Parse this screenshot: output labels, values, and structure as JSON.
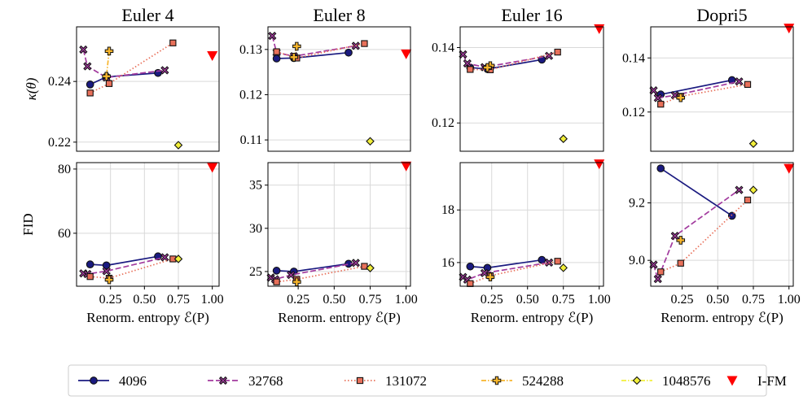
{
  "legend": {
    "entries": [
      {
        "name": "4096",
        "color": "#1a1a80",
        "marker": "circle",
        "dash": "solid"
      },
      {
        "name": "32768",
        "color": "#a23a9e",
        "marker": "x",
        "dash": "dashed"
      },
      {
        "name": "131072",
        "color": "#e8705a",
        "marker": "square",
        "dash": "dotted"
      },
      {
        "name": "524288",
        "color": "#f7b52c",
        "marker": "plus",
        "dash": "dashdot"
      },
      {
        "name": "1048576",
        "color": "#f2ef3a",
        "marker": "diamond",
        "dash": "dashdot"
      },
      {
        "name": "I-FM",
        "color": "#ff0000",
        "marker": "triangle",
        "dash": "none"
      }
    ]
  },
  "chart_data": [
    {
      "type": "scatter",
      "title": "Euler 4",
      "ylabel": "κ(θ)",
      "xlabel": "",
      "xlim": [
        0,
        1.05
      ],
      "ylim": [
        0.217,
        0.258
      ],
      "yticks": [
        "0.22",
        "0.24"
      ],
      "ytick_values": [
        0.22,
        0.24
      ],
      "xticks": [],
      "xtick_values": [],
      "series": [
        {
          "name": "4096",
          "points": [
            [
              0.1,
              0.239
            ],
            [
              0.22,
              0.2415
            ],
            [
              0.6,
              0.2428
            ]
          ]
        },
        {
          "name": "32768",
          "points": [
            [
              0.05,
              0.2505
            ],
            [
              0.08,
              0.245
            ],
            [
              0.22,
              0.2413
            ],
            [
              0.65,
              0.2437
            ]
          ]
        },
        {
          "name": "131072",
          "points": [
            [
              0.1,
              0.2362
            ],
            [
              0.24,
              0.2393
            ],
            [
              0.71,
              0.2527
            ]
          ]
        },
        {
          "name": "524288",
          "points": [
            [
              0.24,
              0.25
            ],
            [
              0.22,
              0.2417
            ]
          ]
        },
        {
          "name": "1048576",
          "points": [
            [
              0.75,
              0.219
            ]
          ]
        },
        {
          "name": "I-FM",
          "points": [
            [
              1.0,
              0.2485
            ]
          ]
        }
      ]
    },
    {
      "type": "scatter",
      "title": "Euler 8",
      "ylabel": "",
      "xlabel": "",
      "xlim": [
        0.04,
        1.03
      ],
      "ylim": [
        0.1075,
        0.135
      ],
      "yticks": [
        "0.11",
        "0.12",
        "0.13"
      ],
      "ytick_values": [
        0.11,
        0.12,
        0.13
      ],
      "xticks": [],
      "xtick_values": [],
      "series": [
        {
          "name": "4096",
          "points": [
            [
              0.1,
              0.128
            ],
            [
              0.22,
              0.1281
            ],
            [
              0.6,
              0.1293
            ]
          ]
        },
        {
          "name": "32768",
          "points": [
            [
              0.07,
              0.133
            ],
            [
              0.1,
              0.1293
            ],
            [
              0.22,
              0.1285
            ],
            [
              0.65,
              0.1308
            ]
          ]
        },
        {
          "name": "131072",
          "points": [
            [
              0.1,
              0.1295
            ],
            [
              0.24,
              0.1281
            ],
            [
              0.71,
              0.1313
            ]
          ]
        },
        {
          "name": "524288",
          "points": [
            [
              0.24,
              0.1307
            ],
            [
              0.22,
              0.1283
            ]
          ]
        },
        {
          "name": "1048576",
          "points": [
            [
              0.75,
              0.1097
            ]
          ]
        },
        {
          "name": "I-FM",
          "points": [
            [
              1.0,
              0.129
            ]
          ]
        }
      ]
    },
    {
      "type": "scatter",
      "title": "Euler 16",
      "ylabel": "",
      "xlabel": "",
      "xlim": [
        0.03,
        1.03
      ],
      "ylim": [
        0.1125,
        0.1455
      ],
      "yticks": [
        "0.12",
        "0.14"
      ],
      "ytick_values": [
        0.12,
        0.14
      ],
      "xticks": [],
      "xtick_values": [],
      "series": [
        {
          "name": "4096",
          "points": [
            [
              0.1,
              0.1347
            ],
            [
              0.22,
              0.1343
            ],
            [
              0.6,
              0.1368
            ]
          ]
        },
        {
          "name": "32768",
          "points": [
            [
              0.05,
              0.1382
            ],
            [
              0.08,
              0.1358
            ],
            [
              0.2,
              0.1348
            ],
            [
              0.65,
              0.1378
            ]
          ]
        },
        {
          "name": "131072",
          "points": [
            [
              0.1,
              0.1342
            ],
            [
              0.24,
              0.1341
            ],
            [
              0.71,
              0.1388
            ]
          ]
        },
        {
          "name": "524288",
          "points": [
            [
              0.24,
              0.1352
            ],
            [
              0.22,
              0.1347
            ]
          ]
        },
        {
          "name": "1048576",
          "points": [
            [
              0.75,
              0.1158
            ]
          ]
        },
        {
          "name": "I-FM",
          "points": [
            [
              1.0,
              0.145
            ]
          ]
        }
      ]
    },
    {
      "type": "scatter",
      "title": "Dopri5",
      "ylabel": "",
      "xlabel": "",
      "xlim": [
        0.03,
        1.03
      ],
      "ylim": [
        0.1055,
        0.1515
      ],
      "yticks": [
        "0.12",
        "0.14"
      ],
      "ytick_values": [
        0.12,
        0.14
      ],
      "xticks": [],
      "xtick_values": [],
      "series": [
        {
          "name": "4096",
          "points": [
            [
              0.1,
              0.1265
            ],
            [
              0.6,
              0.1318
            ]
          ]
        },
        {
          "name": "32768",
          "points": [
            [
              0.05,
              0.128
            ],
            [
              0.08,
              0.1252
            ],
            [
              0.2,
              0.1262
            ],
            [
              0.65,
              0.1313
            ]
          ]
        },
        {
          "name": "131072",
          "points": [
            [
              0.1,
              0.1229
            ],
            [
              0.24,
              0.1258
            ],
            [
              0.71,
              0.1302
            ]
          ]
        },
        {
          "name": "524288",
          "points": [
            [
              0.24,
              0.1253
            ]
          ]
        },
        {
          "name": "1048576",
          "points": [
            [
              0.75,
              0.1083
            ]
          ]
        },
        {
          "name": "I-FM",
          "points": [
            [
              1.0,
              0.151
            ]
          ]
        }
      ]
    },
    {
      "type": "scatter",
      "title": "",
      "ylabel": "FID",
      "xlabel": "Renorm. entropy ℰ(P)",
      "xlim": [
        0,
        1.05
      ],
      "ylim": [
        43.5,
        82
      ],
      "yticks": [
        "60",
        "80"
      ],
      "ytick_values": [
        60,
        80
      ],
      "xticks": [
        "0.25",
        "0.50",
        "0.75",
        "1.00"
      ],
      "xtick_values": [
        0.25,
        0.5,
        0.75,
        1.0
      ],
      "series": [
        {
          "name": "4096",
          "points": [
            [
              0.1,
              50.3
            ],
            [
              0.22,
              50
            ],
            [
              0.6,
              52.8
            ]
          ]
        },
        {
          "name": "32768",
          "points": [
            [
              0.05,
              47.5
            ],
            [
              0.08,
              47.3
            ],
            [
              0.22,
              48.2
            ],
            [
              0.65,
              52.5
            ]
          ]
        },
        {
          "name": "131072",
          "points": [
            [
              0.1,
              46.5
            ],
            [
              0.24,
              46
            ],
            [
              0.71,
              52
            ]
          ]
        },
        {
          "name": "524288",
          "points": [
            [
              0.24,
              45.5
            ]
          ]
        },
        {
          "name": "1048576",
          "points": [
            [
              0.75,
              52
            ]
          ]
        },
        {
          "name": "I-FM",
          "points": [
            [
              1.0,
              80.5
            ]
          ]
        }
      ]
    },
    {
      "type": "scatter",
      "title": "",
      "ylabel": "",
      "xlabel": "Renorm. entropy ℰ(P)",
      "xlim": [
        0.04,
        1.03
      ],
      "ylim": [
        23.3,
        37.6
      ],
      "yticks": [
        "25",
        "30",
        "35"
      ],
      "ytick_values": [
        25,
        30,
        35
      ],
      "xticks": [
        "0.25",
        "0.50",
        "0.75",
        "1.00"
      ],
      "xtick_values": [
        0.25,
        0.5,
        0.75,
        1.0
      ],
      "series": [
        {
          "name": "4096",
          "points": [
            [
              0.1,
              25.1
            ],
            [
              0.22,
              25
            ],
            [
              0.6,
              25.9
            ]
          ]
        },
        {
          "name": "32768",
          "points": [
            [
              0.06,
              24.3
            ],
            [
              0.09,
              24.1
            ],
            [
              0.2,
              24.6
            ],
            [
              0.65,
              26
            ]
          ]
        },
        {
          "name": "131072",
          "points": [
            [
              0.1,
              23.8
            ],
            [
              0.24,
              24.1
            ],
            [
              0.71,
              25.6
            ]
          ]
        },
        {
          "name": "524288",
          "points": [
            [
              0.24,
              23.8
            ]
          ]
        },
        {
          "name": "1048576",
          "points": [
            [
              0.75,
              25.4
            ]
          ]
        },
        {
          "name": "I-FM",
          "points": [
            [
              1.0,
              37.2
            ]
          ]
        }
      ]
    },
    {
      "type": "scatter",
      "title": "",
      "ylabel": "",
      "xlabel": "Renorm. entropy ℰ(P)",
      "xlim": [
        0.03,
        1.03
      ],
      "ylim": [
        15.1,
        19.8
      ],
      "yticks": [
        "16",
        "18"
      ],
      "ytick_values": [
        16,
        18
      ],
      "xticks": [
        "0.25",
        "0.50",
        "0.75",
        "1.00"
      ],
      "xtick_values": [
        0.25,
        0.5,
        0.75,
        1.0
      ],
      "series": [
        {
          "name": "4096",
          "points": [
            [
              0.1,
              15.85
            ],
            [
              0.22,
              15.8
            ],
            [
              0.6,
              16.1
            ]
          ]
        },
        {
          "name": "32768",
          "points": [
            [
              0.05,
              15.45
            ],
            [
              0.08,
              15.35
            ],
            [
              0.2,
              15.6
            ],
            [
              0.65,
              16
            ]
          ]
        },
        {
          "name": "131072",
          "points": [
            [
              0.1,
              15.2
            ],
            [
              0.24,
              15.5
            ],
            [
              0.71,
              16.05
            ]
          ]
        },
        {
          "name": "524288",
          "points": [
            [
              0.24,
              15.45
            ]
          ]
        },
        {
          "name": "1048576",
          "points": [
            [
              0.75,
              15.8
            ]
          ]
        },
        {
          "name": "I-FM",
          "points": [
            [
              1.0,
              19.75
            ]
          ]
        }
      ]
    },
    {
      "type": "scatter",
      "title": "",
      "ylabel": "",
      "xlabel": "Renorm. entropy ℰ(P)",
      "xlim": [
        0.03,
        1.03
      ],
      "ylim": [
        8.91,
        9.34
      ],
      "yticks": [
        "9.0",
        "9.2"
      ],
      "ytick_values": [
        9.0,
        9.2
      ],
      "xticks": [
        "0.25",
        "0.50",
        "0.75",
        "1.00"
      ],
      "xtick_values": [
        0.25,
        0.5,
        0.75,
        1.0
      ],
      "series": [
        {
          "name": "4096",
          "points": [
            [
              0.1,
              9.32
            ],
            [
              0.6,
              9.155
            ]
          ]
        },
        {
          "name": "32768",
          "points": [
            [
              0.05,
              8.985
            ],
            [
              0.08,
              8.935
            ],
            [
              0.2,
              9.085
            ],
            [
              0.65,
              9.245
            ]
          ]
        },
        {
          "name": "131072",
          "points": [
            [
              0.1,
              8.96
            ],
            [
              0.24,
              8.99
            ],
            [
              0.71,
              9.21
            ]
          ]
        },
        {
          "name": "524288",
          "points": [
            [
              0.24,
              9.07
            ]
          ]
        },
        {
          "name": "1048576",
          "points": [
            [
              0.75,
              9.245
            ]
          ]
        },
        {
          "name": "I-FM",
          "points": [
            [
              1.0,
              9.32
            ]
          ]
        }
      ]
    }
  ]
}
